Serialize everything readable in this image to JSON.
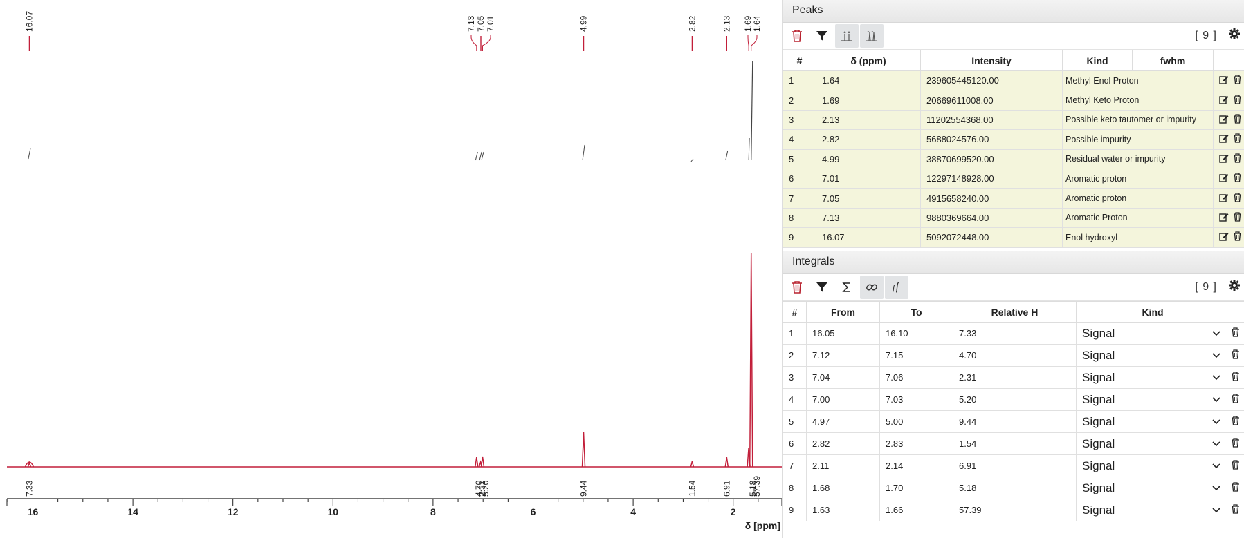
{
  "spectrum": {
    "axis_label": "δ [ppm]",
    "ticks": [
      "16",
      "14",
      "12",
      "10",
      "8",
      "6",
      "4",
      "2"
    ],
    "peak_labels": [
      "16.07",
      "7.13",
      "7.05",
      "7.01",
      "4.99",
      "2.82",
      "2.13",
      "1.69",
      "1.64"
    ],
    "integral_labels": [
      "7.33",
      "4.70",
      "2.31",
      "5.20",
      "9.44",
      "1.54",
      "6.91",
      "5.18",
      "57.39"
    ],
    "colors": {
      "spectrum": "#c21f3a",
      "peak_marker": "#c21f3a",
      "integral_curve": "#444444"
    }
  },
  "peaks": {
    "title": "Peaks",
    "count": "[ 9 ]",
    "headers": [
      "#",
      "δ (ppm)",
      "Intensity",
      "Kind",
      "fwhm"
    ],
    "rows": [
      {
        "n": "1",
        "ppm": "1.64",
        "intensity": "239605445120.00",
        "kind": "Methyl Enol Proton"
      },
      {
        "n": "2",
        "ppm": "1.69",
        "intensity": "20669611008.00",
        "kind": "Methyl Keto Proton"
      },
      {
        "n": "3",
        "ppm": "2.13",
        "intensity": "11202554368.00",
        "kind": "Possible keto tautomer or impurity"
      },
      {
        "n": "4",
        "ppm": "2.82",
        "intensity": "5688024576.00",
        "kind": "Possible impurity"
      },
      {
        "n": "5",
        "ppm": "4.99",
        "intensity": "38870699520.00",
        "kind": "Residual water or impurity"
      },
      {
        "n": "6",
        "ppm": "7.01",
        "intensity": "12297148928.00",
        "kind": "Aromatic proton"
      },
      {
        "n": "7",
        "ppm": "7.05",
        "intensity": "4915658240.00",
        "kind": "Aromatic proton"
      },
      {
        "n": "8",
        "ppm": "7.13",
        "intensity": "9880369664.00",
        "kind": "Aromatic Proton"
      },
      {
        "n": "9",
        "ppm": "16.07",
        "intensity": "5092072448.00",
        "kind": "Enol hydroxyl"
      }
    ]
  },
  "integrals": {
    "title": "Integrals",
    "count": "[ 9 ]",
    "headers": [
      "#",
      "From",
      "To",
      "Relative H",
      "Kind"
    ],
    "rows": [
      {
        "n": "1",
        "from": "16.05",
        "to": "16.10",
        "rel": "7.33",
        "kind": "Signal"
      },
      {
        "n": "2",
        "from": "7.12",
        "to": "7.15",
        "rel": "4.70",
        "kind": "Signal"
      },
      {
        "n": "3",
        "from": "7.04",
        "to": "7.06",
        "rel": "2.31",
        "kind": "Signal"
      },
      {
        "n": "4",
        "from": "7.00",
        "to": "7.03",
        "rel": "5.20",
        "kind": "Signal"
      },
      {
        "n": "5",
        "from": "4.97",
        "to": "5.00",
        "rel": "9.44",
        "kind": "Signal"
      },
      {
        "n": "6",
        "from": "2.82",
        "to": "2.83",
        "rel": "1.54",
        "kind": "Signal"
      },
      {
        "n": "7",
        "from": "2.11",
        "to": "2.14",
        "rel": "6.91",
        "kind": "Signal"
      },
      {
        "n": "8",
        "from": "1.68",
        "to": "1.70",
        "rel": "5.18",
        "kind": "Signal"
      },
      {
        "n": "9",
        "from": "1.63",
        "to": "1.66",
        "rel": "57.39",
        "kind": "Signal"
      }
    ]
  }
}
